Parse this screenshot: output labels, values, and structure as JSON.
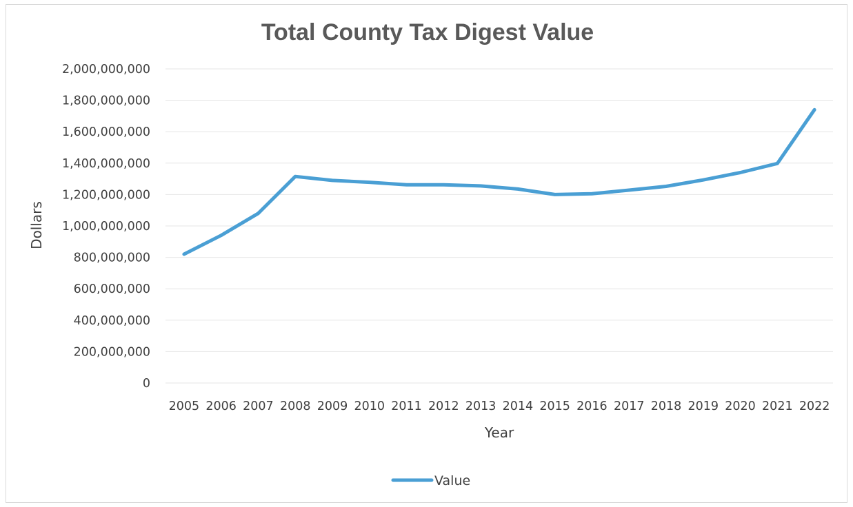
{
  "chart_data": {
    "type": "line",
    "title": "Total County Tax Digest Value",
    "xlabel": "Year",
    "ylabel": "Dollars",
    "ylim": [
      0,
      2000000000
    ],
    "yticks": [
      0,
      200000000,
      400000000,
      600000000,
      800000000,
      1000000000,
      1200000000,
      1400000000,
      1600000000,
      1800000000,
      2000000000
    ],
    "ytick_labels": [
      "0",
      "200,000,000",
      "400,000,000",
      "600,000,000",
      "800,000,000",
      "1,000,000,000",
      "1,200,000,000",
      "1,400,000,000",
      "1,600,000,000",
      "1,800,000,000",
      "2,000,000,000"
    ],
    "categories": [
      "2005",
      "2006",
      "2007",
      "2008",
      "2009",
      "2010",
      "2011",
      "2012",
      "2013",
      "2014",
      "2015",
      "2016",
      "2017",
      "2018",
      "2019",
      "2020",
      "2021",
      "2022"
    ],
    "series": [
      {
        "name": "Value",
        "color": "#4a9fd4",
        "values": [
          820000000,
          940000000,
          1080000000,
          1315000000,
          1290000000,
          1278000000,
          1262000000,
          1262000000,
          1255000000,
          1235000000,
          1200000000,
          1205000000,
          1228000000,
          1252000000,
          1293000000,
          1340000000,
          1398000000,
          1740000000
        ]
      }
    ],
    "grid": true,
    "legend": "bottom"
  }
}
